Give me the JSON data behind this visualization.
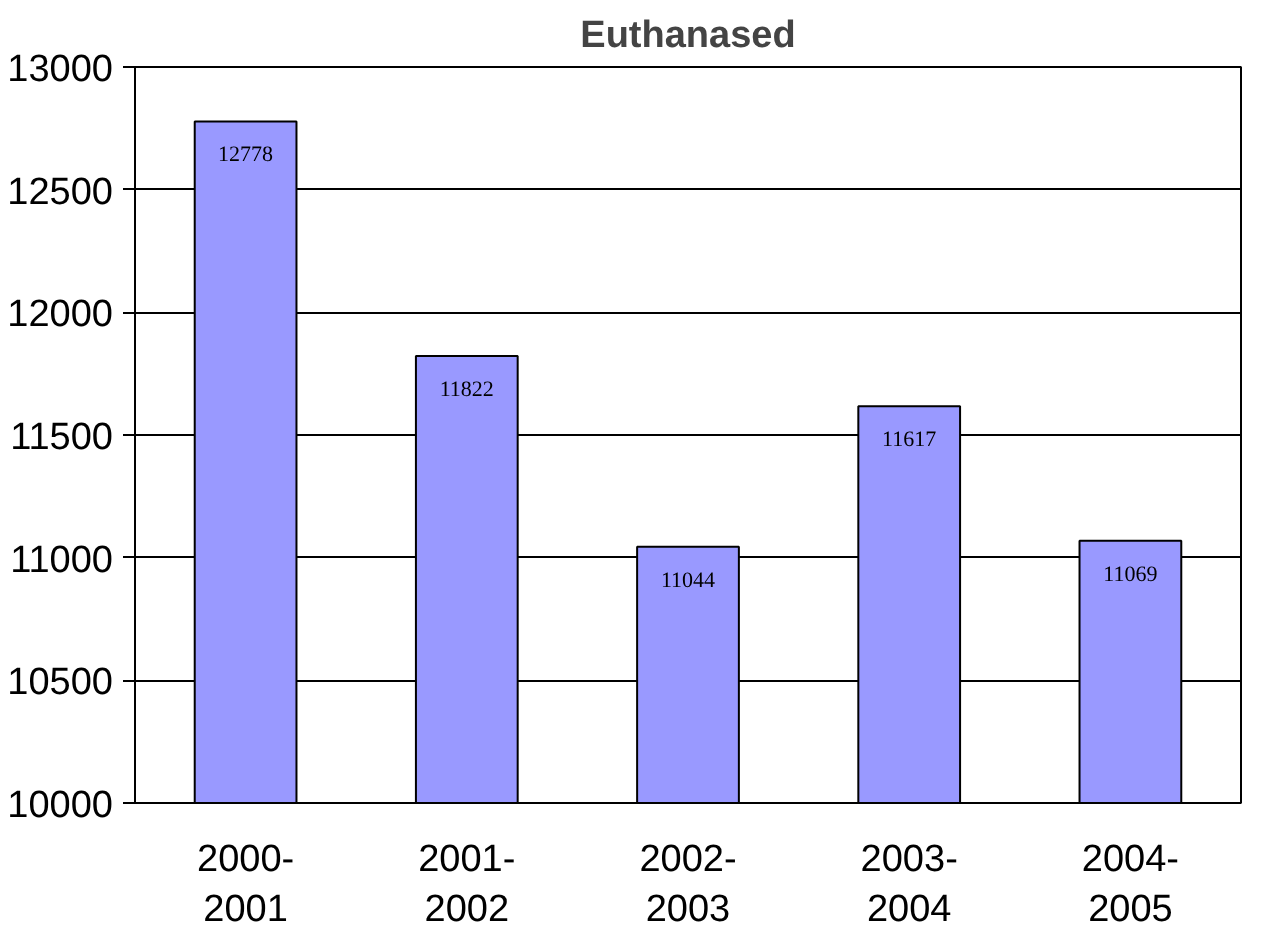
{
  "chart_data": {
    "type": "bar",
    "title": "Euthanased",
    "categories": [
      "2000-2001",
      "2001-2002",
      "2002-2003",
      "2003-2004",
      "2004-2005"
    ],
    "values": [
      12778,
      11822,
      11044,
      11617,
      11069
    ],
    "color": "#9999ff",
    "ylim": [
      10000,
      13000
    ],
    "yticks": [
      10000,
      10500,
      11000,
      11500,
      12000,
      12500,
      13000
    ],
    "grid": "y",
    "data_labels": true
  }
}
